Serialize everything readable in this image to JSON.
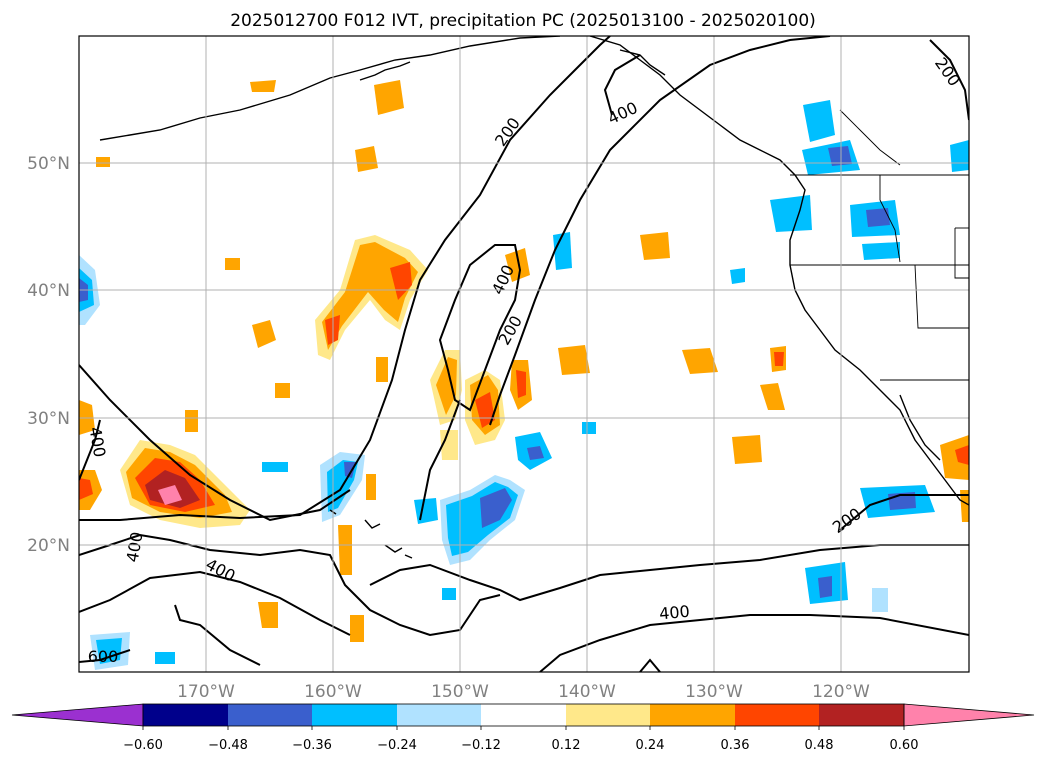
{
  "title": "2025012700 F012 IVT, precipitation PC (2025013100 - 2025020100)",
  "map": {
    "projection": "cylindrical",
    "lon_range": [
      -180,
      -110
    ],
    "lat_range": [
      10,
      60
    ],
    "gridlines": true,
    "lat_labels": [
      "50°N",
      "40°N",
      "30°N",
      "20°N"
    ],
    "lon_labels": [
      "170°W",
      "160°W",
      "150°W",
      "140°W",
      "130°W",
      "120°W"
    ],
    "ivt_contour_labels": [
      "200",
      "400",
      "400",
      "200",
      "400",
      "200",
      "200",
      "400",
      "400",
      "400",
      "600",
      "400",
      "200"
    ]
  },
  "colorbar": {
    "ticks": [
      "−0.60",
      "−0.48",
      "−0.36",
      "−0.24",
      "−0.12",
      "0.12",
      "0.24",
      "0.36",
      "0.48",
      "0.60"
    ],
    "colors": [
      "#9b30d0",
      "#00008b",
      "#3a5fcd",
      "#00bfff",
      "#b0e2ff",
      "#ffffff",
      "#ffe88a",
      "#ffa500",
      "#ff4500",
      "#b22222",
      "#ff82ab",
      "#ff82ab"
    ],
    "extend": "both"
  },
  "palette": {
    "pos1": "#ffe88a",
    "pos2": "#ffa500",
    "pos3": "#ff4500",
    "pos4": "#b22222",
    "pos5": "#ff82ab",
    "neg1": "#b0e2ff",
    "neg2": "#00bfff",
    "neg3": "#3a5fcd",
    "neg4": "#00008b"
  }
}
